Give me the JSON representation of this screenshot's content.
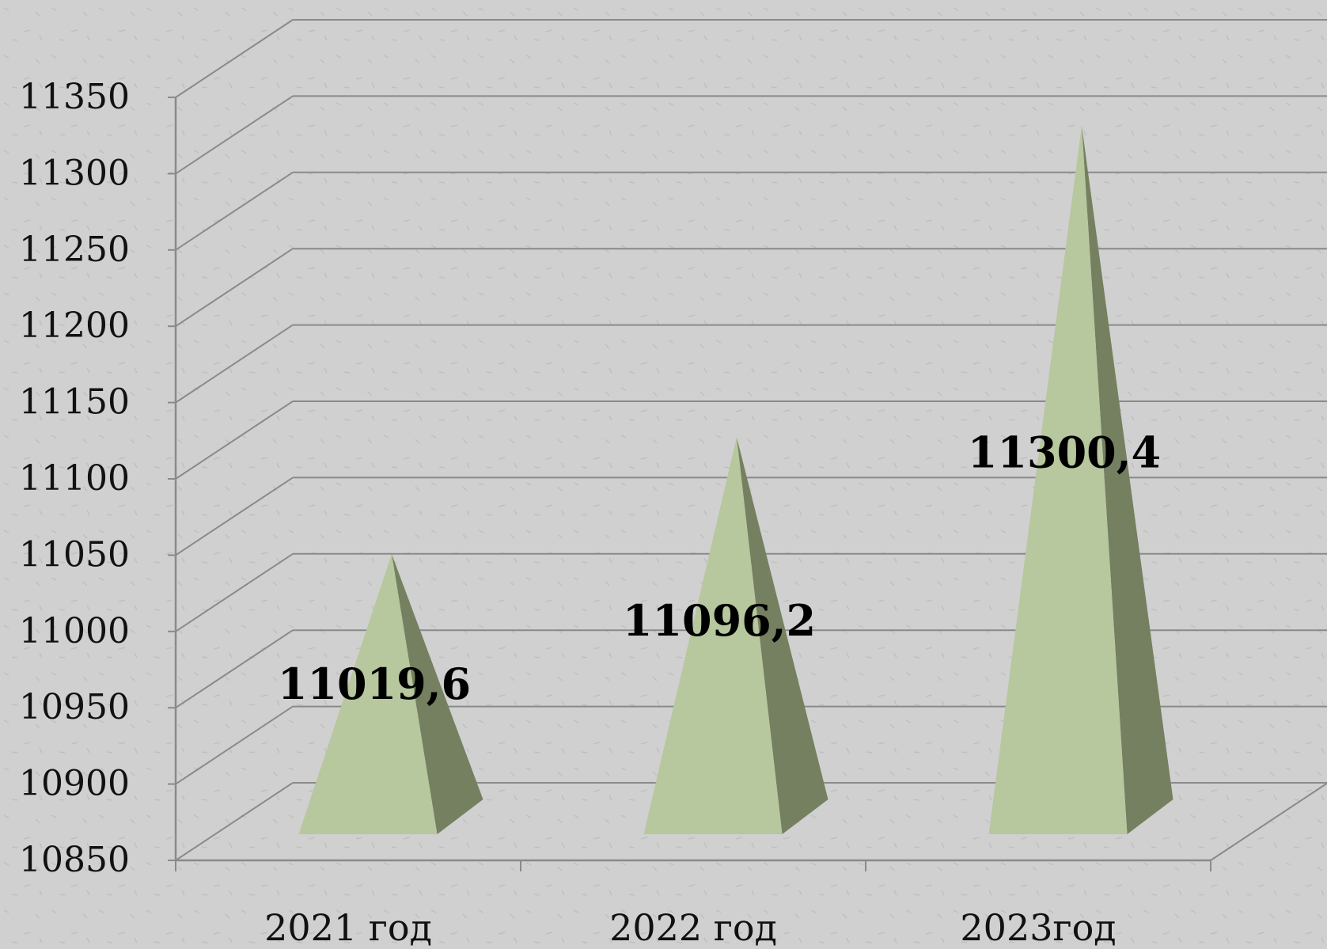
{
  "chart_data": {
    "type": "bar",
    "style": "3d-pyramid",
    "categories": [
      "2021 год",
      "2022 год",
      "2023год"
    ],
    "values": [
      11019.6,
      11096.2,
      11300.4
    ],
    "data_labels": [
      "11019,6",
      "11096,2",
      "11300,4"
    ],
    "y_ticks": [
      "10850",
      "10900",
      "10950",
      "11000",
      "11050",
      "11100",
      "11150",
      "11200",
      "11250",
      "11300",
      "11350"
    ],
    "ylim": [
      10850,
      11350
    ],
    "grid": true,
    "legend": "none",
    "title": "",
    "xlabel": "",
    "ylabel": "",
    "colors": {
      "background": "#cfcfcf",
      "grid": "#8a8a8a",
      "face_light": "#b7c79e",
      "face_side": "#74805f"
    }
  }
}
